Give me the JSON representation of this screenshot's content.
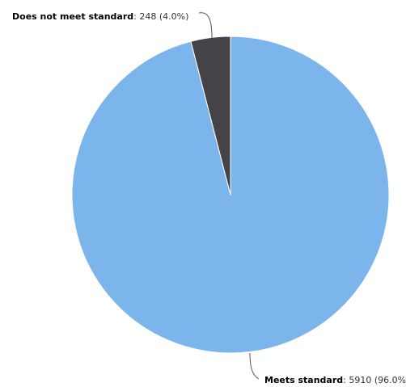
{
  "chart_data": {
    "type": "pie",
    "title": "",
    "slices": [
      {
        "label": "Meets standard",
        "value": 5910,
        "percent": "96.0%",
        "color": "#7cb5ec"
      },
      {
        "label": "Does not meet standard",
        "value": 248,
        "percent": "4.0%",
        "color": "#434348"
      }
    ],
    "slice_border_color": "#ffffff",
    "legend": "none",
    "start_angle_deg": 0,
    "direction": "clockwise"
  }
}
